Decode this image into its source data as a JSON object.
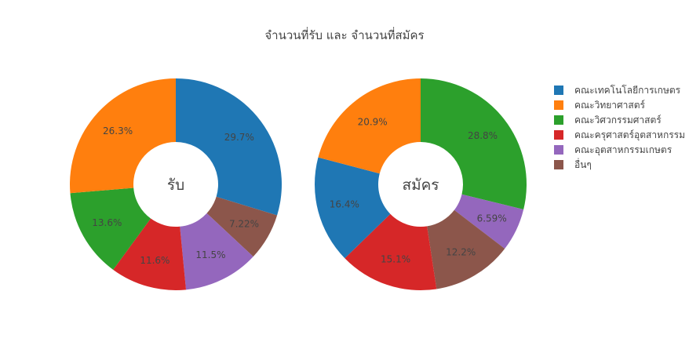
{
  "chart_data": {
    "type": "pie",
    "title": "จำนวนที่รับ และ จำนวนที่สมัคร",
    "legend_placement": "right",
    "categories": [
      "คณะเทคโนโลยีการเกษตร",
      "คณะวิทยาศาสตร์",
      "คณะวิศวกรรมศาสตร์",
      "คณะครุศาสตร์อุตสาหกรรม",
      "คณะอุตสาหกรรมเกษตร",
      "อื่นๆ"
    ],
    "colors": [
      "#1f77b4",
      "#ff7f0e",
      "#2ca02c",
      "#d62728",
      "#9467bd",
      "#8c564b"
    ],
    "series": [
      {
        "name": "รับ",
        "values": [
          29.7,
          26.3,
          13.6,
          11.6,
          11.5,
          7.22
        ],
        "labels": [
          "29.7%",
          "26.3%",
          "13.6%",
          "11.6%",
          "11.5%",
          "7.22%"
        ]
      },
      {
        "name": "สมัคร",
        "values": [
          16.4,
          20.9,
          28.8,
          15.1,
          6.59,
          12.2
        ],
        "labels": [
          "16.4%",
          "20.9%",
          "28.8%",
          "15.1%",
          "6.59%",
          "12.2%"
        ]
      }
    ]
  }
}
